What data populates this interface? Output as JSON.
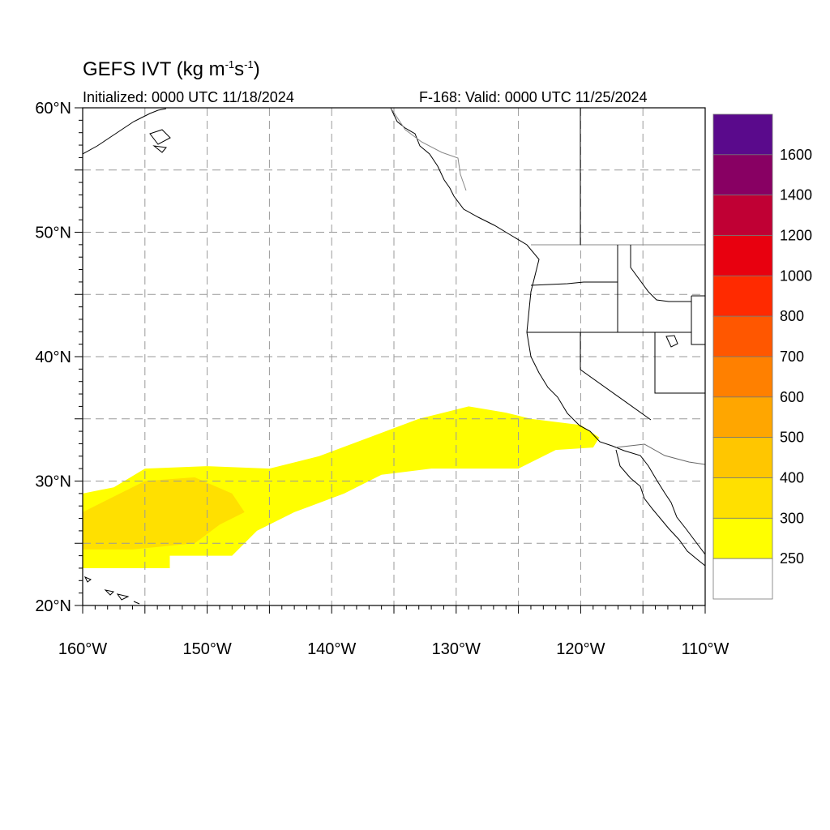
{
  "header": {
    "title_main": "GEFS IVT (kg m",
    "title_exp1": "-1",
    "title_mid": "s",
    "title_exp2": "-1",
    "title_end": ")",
    "initialized": "Initialized: 0000 UTC 11/18/2024",
    "valid": "F-168: Valid: 0000 UTC 11/25/2024"
  },
  "map": {
    "lon_range": [
      -160,
      -110
    ],
    "lat_range": [
      20,
      60
    ],
    "lat_labels": [
      {
        "lat": 60,
        "label": "60°N"
      },
      {
        "lat": 50,
        "label": "50°N"
      },
      {
        "lat": 40,
        "label": "40°N"
      },
      {
        "lat": 30,
        "label": "30°N"
      },
      {
        "lat": 20,
        "label": "20°N"
      }
    ],
    "lon_labels": [
      {
        "lon": -160,
        "label": "160°W"
      },
      {
        "lon": -150,
        "label": "150°W"
      },
      {
        "lon": -140,
        "label": "140°W"
      },
      {
        "lon": -130,
        "label": "130°W"
      },
      {
        "lon": -120,
        "label": "120°W"
      },
      {
        "lon": -110,
        "label": "110°W"
      }
    ],
    "grid_spacing_deg": 5,
    "grid": "dashed"
  },
  "colorbar": {
    "labels": [
      "1600",
      "1400",
      "1200",
      "1000",
      "800",
      "700",
      "600",
      "500",
      "400",
      "300",
      "250"
    ],
    "colors": [
      "#5a0a8c",
      "#880063",
      "#c00034",
      "#e8000f",
      "#ff2a00",
      "#ff5700",
      "#ff8000",
      "#ffa600",
      "#ffc600",
      "#ffe000",
      "#ffff00",
      "#ffffff"
    ]
  },
  "ivt_field": {
    "bands": [
      {
        "threshold": "250",
        "color": "#ffff00",
        "lon_lat_outline": [
          [
            -160,
            23
          ],
          [
            -153,
            23
          ],
          [
            -153,
            24
          ],
          [
            -148,
            24
          ],
          [
            -146,
            26
          ],
          [
            -143,
            27.5
          ],
          [
            -139,
            29
          ],
          [
            -136,
            30.5
          ],
          [
            -132,
            31
          ],
          [
            -128,
            31
          ],
          [
            -125,
            31
          ],
          [
            -122,
            32.5
          ],
          [
            -119,
            32.7
          ],
          [
            -118.5,
            33.5
          ],
          [
            -120,
            34.5
          ],
          [
            -124,
            35
          ],
          [
            -126,
            35.5
          ],
          [
            -129,
            36
          ],
          [
            -133,
            35
          ],
          [
            -137,
            33.5
          ],
          [
            -141,
            32
          ],
          [
            -145,
            31
          ],
          [
            -150,
            31.2
          ],
          [
            -155,
            31
          ],
          [
            -157.5,
            29.5
          ],
          [
            -160,
            29
          ]
        ]
      },
      {
        "threshold": "300",
        "color": "#ffe000",
        "lon_lat_outline": [
          [
            -160,
            24.5
          ],
          [
            -156,
            24.5
          ],
          [
            -151,
            25
          ],
          [
            -149,
            26.5
          ],
          [
            -147,
            27.5
          ],
          [
            -148,
            29
          ],
          [
            -151,
            30.3
          ],
          [
            -155,
            30
          ],
          [
            -158,
            28.5
          ],
          [
            -160,
            27.5
          ]
        ]
      }
    ]
  }
}
